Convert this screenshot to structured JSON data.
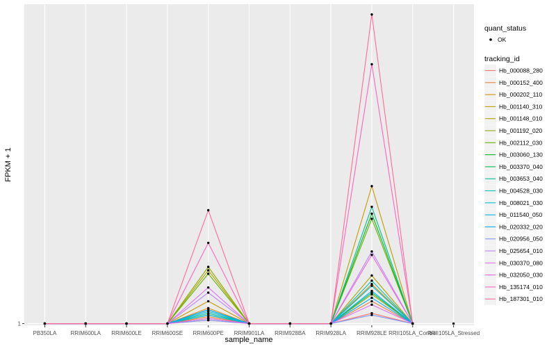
{
  "chart_data": {
    "type": "line",
    "xlabel": "sample_name",
    "ylabel": "FPKM + 1",
    "y_tick_labels": [
      "1"
    ],
    "ylim": [
      0.9,
      19.6
    ],
    "grid": true,
    "categories": [
      "PB350LA",
      "RRIM600LA",
      "RRIM600LE",
      "RRIM600SE",
      "RRIM600PE",
      "RRIM901LA",
      "RRIM928BA",
      "RRIM928LA",
      "RRIM928LE",
      "RRII105LA_Control",
      "RRII105LA_Stressed"
    ],
    "legend_shape": {
      "title": "quant_status",
      "entries": [
        "OK"
      ]
    },
    "legend_color": {
      "title": "tracking_id"
    },
    "series": [
      {
        "name": "Hb_000088_280",
        "color": "#f8766d",
        "values": [
          1,
          1,
          1,
          1,
          1.2,
          1,
          1,
          1,
          1.6,
          1,
          null
        ]
      },
      {
        "name": "Hb_000152_400",
        "color": "#ec8239",
        "values": [
          1,
          1,
          1,
          1,
          1.4,
          1,
          1,
          1,
          2.3,
          1,
          null
        ]
      },
      {
        "name": "Hb_000202_110",
        "color": "#db8e00",
        "values": [
          1,
          1,
          1,
          1,
          1.9,
          1,
          1,
          1,
          3.3,
          1,
          null
        ]
      },
      {
        "name": "Hb_001140_310",
        "color": "#c79800",
        "values": [
          1,
          1,
          1,
          1,
          2.3,
          1,
          1,
          1,
          9.0,
          1,
          null
        ]
      },
      {
        "name": "Hb_001148_010",
        "color": "#aea200",
        "values": [
          1,
          1,
          1,
          1,
          4.1,
          1,
          1,
          1,
          3.8,
          1,
          null
        ]
      },
      {
        "name": "Hb_001192_020",
        "color": "#8faa00",
        "values": [
          1,
          1,
          1,
          1,
          4.3,
          1,
          1,
          1,
          2.7,
          1,
          null
        ]
      },
      {
        "name": "Hb_002112_030",
        "color": "#64b200",
        "values": [
          1,
          1,
          1,
          1,
          3.9,
          1,
          1,
          1,
          7.1,
          1,
          null
        ]
      },
      {
        "name": "Hb_003060_130",
        "color": "#00b81b",
        "values": [
          1,
          1,
          1,
          1,
          1.5,
          1,
          1,
          1,
          7.4,
          1,
          null
        ]
      },
      {
        "name": "Hb_003370_040",
        "color": "#00bd5c",
        "values": [
          1,
          1,
          1,
          1,
          1.3,
          1,
          1,
          1,
          2.8,
          1,
          null
        ]
      },
      {
        "name": "Hb_003653_040",
        "color": "#00c08e",
        "values": [
          1,
          1,
          1,
          1,
          1.6,
          1,
          1,
          1,
          7.8,
          1,
          null
        ]
      },
      {
        "name": "Hb_004528_030",
        "color": "#00c1b7",
        "values": [
          1,
          1,
          1,
          1,
          1.8,
          1,
          1,
          1,
          3.5,
          1,
          null
        ]
      },
      {
        "name": "Hb_008021_030",
        "color": "#00bdd4",
        "values": [
          1,
          1,
          1,
          1,
          1.7,
          1,
          1,
          1,
          3.2,
          1,
          null
        ]
      },
      {
        "name": "Hb_011540_050",
        "color": "#00b5ee",
        "values": [
          1,
          1,
          1,
          1,
          1.5,
          1,
          1,
          1,
          2.9,
          1,
          null
        ]
      },
      {
        "name": "Hb_020332_020",
        "color": "#00a7ff",
        "values": [
          1,
          1,
          1,
          1,
          1.8,
          1,
          1,
          1,
          2.5,
          1,
          null
        ]
      },
      {
        "name": "Hb_020956_050",
        "color": "#7f96ff",
        "values": [
          1,
          1,
          1,
          1,
          1.2,
          1,
          1,
          1,
          1.5,
          1,
          null
        ]
      },
      {
        "name": "Hb_025654_010",
        "color": "#bc81ff",
        "values": [
          1,
          1,
          1,
          1,
          2.8,
          1,
          1,
          1,
          5.2,
          1,
          null
        ]
      },
      {
        "name": "Hb_030370_080",
        "color": "#e26ef7",
        "values": [
          1,
          1,
          1,
          1,
          3.1,
          1,
          1,
          1,
          2.1,
          1,
          null
        ]
      },
      {
        "name": "Hb_032050_030",
        "color": "#f863df",
        "values": [
          1,
          1,
          1,
          1,
          1.3,
          1,
          1,
          1,
          5.0,
          1,
          null
        ]
      },
      {
        "name": "Hb_135174_010",
        "color": "#ff62bf",
        "values": [
          1,
          1,
          1,
          1,
          5.7,
          1,
          1,
          1,
          16.1,
          1,
          null
        ]
      },
      {
        "name": "Hb_187301_010",
        "color": "#ff6a98",
        "values": [
          1,
          1,
          1,
          1,
          7.6,
          1,
          1,
          1,
          19.0,
          1,
          null
        ]
      }
    ]
  }
}
